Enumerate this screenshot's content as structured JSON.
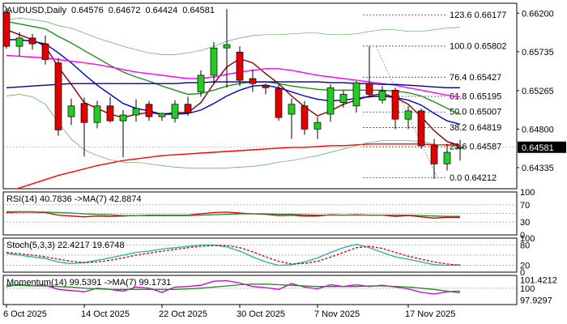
{
  "chart_data": {
    "type": "candlestick",
    "header": {
      "symbol": "AUDUSD,Daily",
      "ohlc": [
        "0.64576",
        "0.64672",
        "0.64424",
        "0.64581"
      ]
    },
    "x_labels": [
      "6 Oct 2025",
      "14 Oct 2025",
      "22 Oct 2025",
      "30 Oct 2025",
      "7 Nov 2025",
      "17 Nov 2025"
    ],
    "x_label_index": [
      0,
      6,
      12,
      18,
      24,
      31
    ],
    "y_ticks": [
      "0.66200",
      "0.65735",
      "0.65265",
      "0.64800",
      "0.64335"
    ],
    "price_range": [
      0.6408,
      0.6632
    ],
    "current_price": "0.64581",
    "candles": [
      {
        "o": 0.6621,
        "h": 0.6626,
        "l": 0.6577,
        "c": 0.658
      },
      {
        "o": 0.658,
        "h": 0.6597,
        "l": 0.6568,
        "c": 0.659
      },
      {
        "o": 0.659,
        "h": 0.6595,
        "l": 0.6576,
        "c": 0.6583
      },
      {
        "o": 0.6583,
        "h": 0.6593,
        "l": 0.6558,
        "c": 0.6564
      },
      {
        "o": 0.656,
        "h": 0.6566,
        "l": 0.6472,
        "c": 0.6479
      },
      {
        "o": 0.6495,
        "h": 0.6517,
        "l": 0.6485,
        "c": 0.6508
      },
      {
        "o": 0.6511,
        "h": 0.6518,
        "l": 0.6447,
        "c": 0.6488
      },
      {
        "o": 0.6488,
        "h": 0.6514,
        "l": 0.6481,
        "c": 0.6508
      },
      {
        "o": 0.6508,
        "h": 0.6519,
        "l": 0.6488,
        "c": 0.649
      },
      {
        "o": 0.649,
        "h": 0.6503,
        "l": 0.6446,
        "c": 0.6497
      },
      {
        "o": 0.6497,
        "h": 0.6516,
        "l": 0.6489,
        "c": 0.6505
      },
      {
        "o": 0.651,
        "h": 0.6514,
        "l": 0.649,
        "c": 0.6495
      },
      {
        "o": 0.6495,
        "h": 0.65,
        "l": 0.649,
        "c": 0.6499
      },
      {
        "o": 0.6493,
        "h": 0.6515,
        "l": 0.6488,
        "c": 0.651
      },
      {
        "o": 0.651,
        "h": 0.6519,
        "l": 0.6496,
        "c": 0.65
      },
      {
        "o": 0.6525,
        "h": 0.6551,
        "l": 0.6519,
        "c": 0.6545
      },
      {
        "o": 0.6545,
        "h": 0.6585,
        "l": 0.6535,
        "c": 0.6578
      },
      {
        "o": 0.6578,
        "h": 0.6625,
        "l": 0.653,
        "c": 0.6582
      },
      {
        "o": 0.6573,
        "h": 0.658,
        "l": 0.6532,
        "c": 0.6539
      },
      {
        "o": 0.6541,
        "h": 0.6552,
        "l": 0.6525,
        "c": 0.6535
      },
      {
        "o": 0.6533,
        "h": 0.6535,
        "l": 0.6522,
        "c": 0.653
      },
      {
        "o": 0.6529,
        "h": 0.6535,
        "l": 0.649,
        "c": 0.6494
      },
      {
        "o": 0.6498,
        "h": 0.6517,
        "l": 0.6468,
        "c": 0.651
      },
      {
        "o": 0.6508,
        "h": 0.6514,
        "l": 0.6473,
        "c": 0.648
      },
      {
        "o": 0.648,
        "h": 0.6495,
        "l": 0.6468,
        "c": 0.6488
      },
      {
        "o": 0.6498,
        "h": 0.6534,
        "l": 0.6489,
        "c": 0.653
      },
      {
        "o": 0.6512,
        "h": 0.6527,
        "l": 0.6506,
        "c": 0.6522
      },
      {
        "o": 0.6508,
        "h": 0.6538,
        "l": 0.65,
        "c": 0.6536
      },
      {
        "o": 0.6535,
        "h": 0.658,
        "l": 0.6518,
        "c": 0.6522
      },
      {
        "o": 0.6515,
        "h": 0.6532,
        "l": 0.6511,
        "c": 0.6526
      },
      {
        "o": 0.6527,
        "h": 0.653,
        "l": 0.648,
        "c": 0.6492
      },
      {
        "o": 0.6492,
        "h": 0.6508,
        "l": 0.648,
        "c": 0.6502
      },
      {
        "o": 0.6502,
        "h": 0.6505,
        "l": 0.6456,
        "c": 0.646
      },
      {
        "o": 0.646,
        "h": 0.6468,
        "l": 0.642,
        "c": 0.6438
      },
      {
        "o": 0.6438,
        "h": 0.6462,
        "l": 0.643,
        "c": 0.6452
      },
      {
        "o": 0.6458,
        "h": 0.6467,
        "l": 0.6442,
        "c": 0.6458
      }
    ],
    "moving_averages": [
      {
        "color": "#8b0000",
        "values": [
          0.66,
          0.6594,
          0.6588,
          0.658,
          0.6555,
          0.6534,
          0.6512,
          0.6505,
          0.6498,
          0.6494,
          0.6498,
          0.65,
          0.6498,
          0.65,
          0.65,
          0.6512,
          0.6535,
          0.6555,
          0.6565,
          0.656,
          0.6547,
          0.6535,
          0.652,
          0.6507,
          0.6496,
          0.6502,
          0.651,
          0.6515,
          0.652,
          0.6523,
          0.6518,
          0.651,
          0.6495,
          0.6478,
          0.6465,
          0.646
        ]
      },
      {
        "color": "#0000cd",
        "values": [
          0.6588,
          0.6588,
          0.6586,
          0.6583,
          0.6572,
          0.656,
          0.6546,
          0.6533,
          0.6522,
          0.6511,
          0.6505,
          0.6502,
          0.6498,
          0.6498,
          0.6499,
          0.6503,
          0.6511,
          0.652,
          0.6527,
          0.6532,
          0.6533,
          0.653,
          0.6525,
          0.652,
          0.6516,
          0.6514,
          0.6515,
          0.6517,
          0.6519,
          0.652,
          0.6518,
          0.6515,
          0.6509,
          0.6499,
          0.649,
          0.6486
        ]
      },
      {
        "color": "#228b22",
        "values": [
          0.661,
          0.6607,
          0.6604,
          0.6601,
          0.6592,
          0.6584,
          0.6575,
          0.6566,
          0.6557,
          0.6549,
          0.6543,
          0.6538,
          0.6532,
          0.6527,
          0.6522,
          0.6523,
          0.6527,
          0.6532,
          0.6535,
          0.6537,
          0.6537,
          0.6535,
          0.6532,
          0.653,
          0.6528,
          0.6527,
          0.6527,
          0.6527,
          0.6527,
          0.6527,
          0.6526,
          0.6524,
          0.652,
          0.6513,
          0.6505,
          0.6498
        ]
      },
      {
        "color": "#ff00ff",
        "values": [
          0.6569,
          0.6568,
          0.6567,
          0.6566,
          0.6564,
          0.6562,
          0.656,
          0.6558,
          0.6555,
          0.6552,
          0.6549,
          0.6547,
          0.6545,
          0.6543,
          0.6541,
          0.6541,
          0.6543,
          0.6546,
          0.6549,
          0.6551,
          0.6553,
          0.6553,
          0.6551,
          0.6548,
          0.6545,
          0.6543,
          0.6541,
          0.6539,
          0.6537,
          0.6535,
          0.6533,
          0.653,
          0.6527,
          0.6524,
          0.6521,
          0.6519
        ]
      },
      {
        "color": "#00008b",
        "values": [
          0.653,
          0.6531,
          0.6532,
          0.6533,
          0.6534,
          0.6535,
          0.6535,
          0.6535,
          0.6535,
          0.6535,
          0.6535,
          0.6535,
          0.6535,
          0.6535,
          0.6536,
          0.6536,
          0.6537,
          0.6537,
          0.6537,
          0.6537,
          0.6537,
          0.6537,
          0.6537,
          0.6537,
          0.6537,
          0.6536,
          0.6536,
          0.6535,
          0.6535,
          0.6534,
          0.6534,
          0.6533,
          0.6532,
          0.6531,
          0.653,
          0.653
        ]
      },
      {
        "color": "#ff0000",
        "values": [
          0.6404,
          0.6409,
          0.6414,
          0.6419,
          0.6424,
          0.6428,
          0.6432,
          0.6436,
          0.6439,
          0.6442,
          0.6444,
          0.6446,
          0.6448,
          0.6449,
          0.645,
          0.6451,
          0.6452,
          0.6453,
          0.6454,
          0.6455,
          0.6456,
          0.6457,
          0.6458,
          0.6458,
          0.6459,
          0.646,
          0.646,
          0.6461,
          0.6462,
          0.6462,
          0.6462,
          0.6462,
          0.6462,
          0.6461,
          0.6461,
          0.646
        ]
      },
      {
        "color": "#55aa55",
        "width": 0.7,
        "values": [
          0.6612,
          0.6614,
          0.6612,
          0.661,
          0.6605,
          0.6602,
          0.6596,
          0.659,
          0.6585,
          0.658,
          0.6576,
          0.6572,
          0.657,
          0.657,
          0.6572,
          0.6575,
          0.658,
          0.6586,
          0.659,
          0.6593,
          0.6594,
          0.6594,
          0.6595,
          0.6596,
          0.6596,
          0.6594,
          0.6594,
          0.6595,
          0.6598,
          0.66,
          0.66,
          0.6598,
          0.6598,
          0.66,
          0.6602,
          0.6603
        ]
      },
      {
        "color": "#55aa55",
        "width": 0.7,
        "values": [
          0.652,
          0.6522,
          0.6519,
          0.651,
          0.6488,
          0.6468,
          0.6455,
          0.6448,
          0.6443,
          0.644,
          0.644,
          0.6438,
          0.6436,
          0.6434,
          0.6433,
          0.6433,
          0.6433,
          0.6433,
          0.6434,
          0.6435,
          0.6437,
          0.644,
          0.6442,
          0.6445,
          0.6448,
          0.6452,
          0.6456,
          0.646,
          0.6464,
          0.6466,
          0.6466,
          0.6466,
          0.6465,
          0.6462,
          0.646,
          0.6458
        ]
      }
    ],
    "fibonacci": [
      {
        "label": "123.6 0.66177",
        "value": 0.66177
      },
      {
        "label": "100.0 0.65802",
        "value": 0.65802
      },
      {
        "label": "76.4 0.65427",
        "value": 0.65427
      },
      {
        "label": "61.8 0.65195",
        "value": 0.65195
      },
      {
        "label": "50.0 0.65007",
        "value": 0.65007
      },
      {
        "label": "38.2 0.64819",
        "value": 0.64819
      },
      {
        "label": "23.6 0.64587",
        "value": 0.64587
      },
      {
        "label": "0.0 0.64212",
        "value": 0.64212
      }
    ],
    "fib_anchor_index": [
      28,
      33
    ],
    "indicators": [
      {
        "title": "RSI(14) 40.7836 ->MA(7) 42.8874",
        "ticks": [
          "100",
          "70",
          "30",
          "0"
        ],
        "tick_values": [
          100,
          70,
          30,
          0
        ],
        "range": [
          0,
          100
        ],
        "levels": [
          70,
          50,
          30
        ],
        "lines": [
          {
            "color": "#cc0000",
            "values": [
              52,
              53,
              53,
              52,
              46,
              44,
              42,
              44,
              43,
              44,
              45,
              46,
              46,
              46,
              46,
              49,
              52,
              53,
              51,
              49,
              48,
              45,
              46,
              44,
              44,
              47,
              46,
              47,
              46,
              46,
              43,
              45,
              42,
              39,
              41,
              41
            ]
          },
          {
            "color": "#228b22",
            "values": [
              54,
              54,
              54,
              53,
              52,
              51,
              49,
              48,
              47,
              45,
              45,
              45,
              45,
              45,
              45,
              46,
              47,
              48,
              49,
              49,
              49,
              48,
              48,
              47,
              46,
              46,
              46,
              46,
              46,
              46,
              46,
              46,
              45,
              44,
              43,
              43
            ]
          }
        ]
      },
      {
        "title": "Stoch(5,3,3) 22.4217 19.6748",
        "ticks": [
          "100",
          "80",
          "20",
          "0"
        ],
        "tick_values": [
          100,
          80,
          20,
          0
        ],
        "range": [
          0,
          100
        ],
        "levels": [
          80,
          50,
          20
        ],
        "lines": [
          {
            "color": "#20b2aa",
            "values": [
              55,
              50,
              45,
              40,
              30,
              25,
              28,
              35,
              42,
              50,
              58,
              62,
              68,
              72,
              76,
              80,
              80,
              74,
              62,
              45,
              30,
              20,
              22,
              30,
              42,
              58,
              72,
              82,
              72,
              58,
              45,
              38,
              30,
              22,
              20,
              22
            ]
          },
          {
            "color": "#cc0000",
            "dash": "3,2",
            "values": [
              58,
              54,
              50,
              45,
              38,
              32,
              28,
              30,
              35,
              42,
              50,
              56,
              62,
              67,
              72,
              76,
              78,
              78,
              72,
              60,
              45,
              32,
              24,
              26,
              32,
              44,
              58,
              72,
              76,
              70,
              58,
              47,
              38,
              30,
              24,
              20
            ]
          }
        ]
      },
      {
        "title": "Momentum(14) 99.5391 ->MA(7) 99.1731",
        "ticks": [
          "101.4212",
          "100",
          "97.9297"
        ],
        "tick_values": [
          101.4212,
          100,
          97.9297
        ],
        "range": [
          97.2,
          102.2
        ],
        "levels": [
          100
        ],
        "lines": [
          {
            "color": "#cc00cc",
            "values": [
              100.3,
              100.6,
              100.4,
              100.5,
              99.8,
              99.6,
              99.4,
              100.0,
              99.8,
              99.5,
              100.2,
              100.0,
              99.3,
              100.2,
              100.3,
              100.5,
              101.2,
              101.3,
              100.9,
              100.3,
              100.1,
              99.8,
              100.8,
              100.2,
              99.9,
              100.6,
              100.3,
              100.6,
              100.3,
              100.5,
              100.2,
              99.9,
              99.3,
              99.0,
              99.4,
              99.5
            ]
          },
          {
            "color": "#228b22",
            "values": [
              100.5,
              100.5,
              100.4,
              100.4,
              100.3,
              100.2,
              100.0,
              99.9,
              99.8,
              99.8,
              99.8,
              99.8,
              99.8,
              99.8,
              99.9,
              100.0,
              100.2,
              100.4,
              100.6,
              100.7,
              100.7,
              100.6,
              100.5,
              100.4,
              100.3,
              100.3,
              100.3,
              100.3,
              100.4,
              100.4,
              100.3,
              100.2,
              100.0,
              99.8,
              99.5,
              99.2
            ]
          }
        ]
      }
    ]
  }
}
